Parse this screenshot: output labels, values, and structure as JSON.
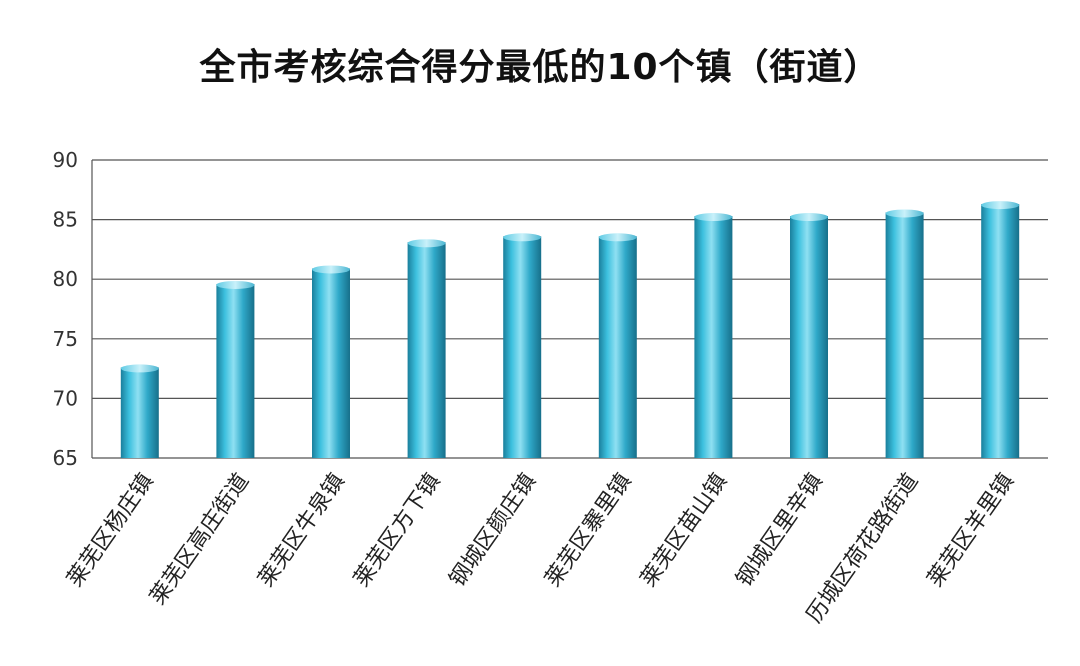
{
  "chart_data": {
    "type": "bar",
    "title": "全市考核综合得分最低的10个镇（街道）",
    "categories": [
      "莱芜区杨庄镇",
      "莱芜区高庄街道",
      "莱芜区牛泉镇",
      "莱芜区方下镇",
      "钢城区颜庄镇",
      "莱芜区寨里镇",
      "莱芜区苗山镇",
      "钢城区里辛镇",
      "历城区荷花路街道",
      "莱芜区羊里镇"
    ],
    "values": [
      72.6,
      79.6,
      80.9,
      83.1,
      83.6,
      83.6,
      85.3,
      85.3,
      85.6,
      86.3
    ],
    "xlabel": "",
    "ylabel": "",
    "ylim": [
      65,
      90
    ],
    "yticks": [
      65,
      70,
      75,
      80,
      85,
      90
    ],
    "grid": true,
    "bar_color": "#2aa6c8"
  }
}
